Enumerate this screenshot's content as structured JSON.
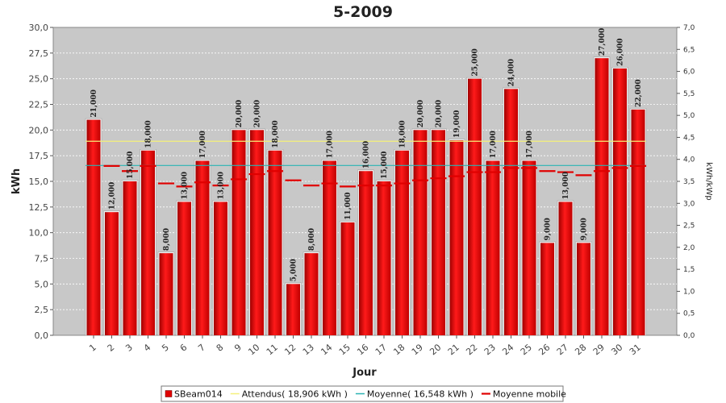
{
  "chart_data": {
    "type": "bar",
    "title": "5-2009",
    "xlabel": "Jour",
    "ylabel": "kWh",
    "y2label": "kWh/kWp",
    "ylim": [
      0,
      30
    ],
    "y2lim": [
      0,
      7
    ],
    "yticks": [
      "0,0",
      "2,5",
      "5,0",
      "7,5",
      "10,0",
      "12,5",
      "15,0",
      "17,5",
      "20,0",
      "22,5",
      "25,0",
      "27,5",
      "30,0"
    ],
    "y2ticks": [
      "0,0",
      "0,5",
      "1,0",
      "1,5",
      "2,0",
      "2,5",
      "3,0",
      "3,5",
      "4,0",
      "4,5",
      "5,0",
      "5,5",
      "6,0",
      "6,5",
      "7,0"
    ],
    "grid": true,
    "legend_position": "bottom",
    "categories": [
      "1",
      "2",
      "3",
      "4",
      "5",
      "6",
      "7",
      "8",
      "9",
      "10",
      "11",
      "12",
      "13",
      "14",
      "15",
      "16",
      "17",
      "18",
      "19",
      "20",
      "21",
      "22",
      "23",
      "24",
      "25",
      "26",
      "27",
      "28",
      "29",
      "30",
      "31"
    ],
    "series": [
      {
        "name": "SBeam014",
        "kind": "bar",
        "color": "#e00000",
        "values": [
          21,
          12,
          15,
          18,
          8,
          13,
          17,
          13,
          20,
          20,
          18,
          5,
          8,
          17,
          11,
          16,
          15,
          18,
          20,
          20,
          19,
          25,
          17,
          24,
          17,
          9,
          13,
          9,
          27,
          26,
          22
        ],
        "labels": [
          "21,000",
          "12,000",
          "15,000",
          "18,000",
          "8,000",
          "13,000",
          "17,000",
          "13,000",
          "20,000",
          "20,000",
          "18,000",
          "5,000",
          "8,000",
          "17,000",
          "11,000",
          "16,000",
          "15,000",
          "18,000",
          "20,000",
          "20,000",
          "19,000",
          "25,000",
          "17,000",
          "24,000",
          "17,000",
          "9,000",
          "13,000",
          "9,000",
          "27,000",
          "26,000",
          "22,000"
        ]
      },
      {
        "name": "Attendus( 18,906 kWh )",
        "kind": "hline",
        "color": "#f5f07a",
        "value": 18.906
      },
      {
        "name": "Moyenne( 16,548 kWh )",
        "kind": "hline",
        "color": "#2ab3b3",
        "value": 16.548
      },
      {
        "name": "Moyenne mobile",
        "kind": "step",
        "color": "#e00000",
        "values": [
          21,
          16.5,
          16,
          16.5,
          14.8,
          14.5,
          14.9,
          14.6,
          15.2,
          15.7,
          16.0,
          15.1,
          14.6,
          14.8,
          14.5,
          14.6,
          14.6,
          14.8,
          15.1,
          15.3,
          15.5,
          15.9,
          15.9,
          16.3,
          16.3,
          16.0,
          15.9,
          15.6,
          16.0,
          16.3,
          16.5
        ]
      }
    ]
  }
}
